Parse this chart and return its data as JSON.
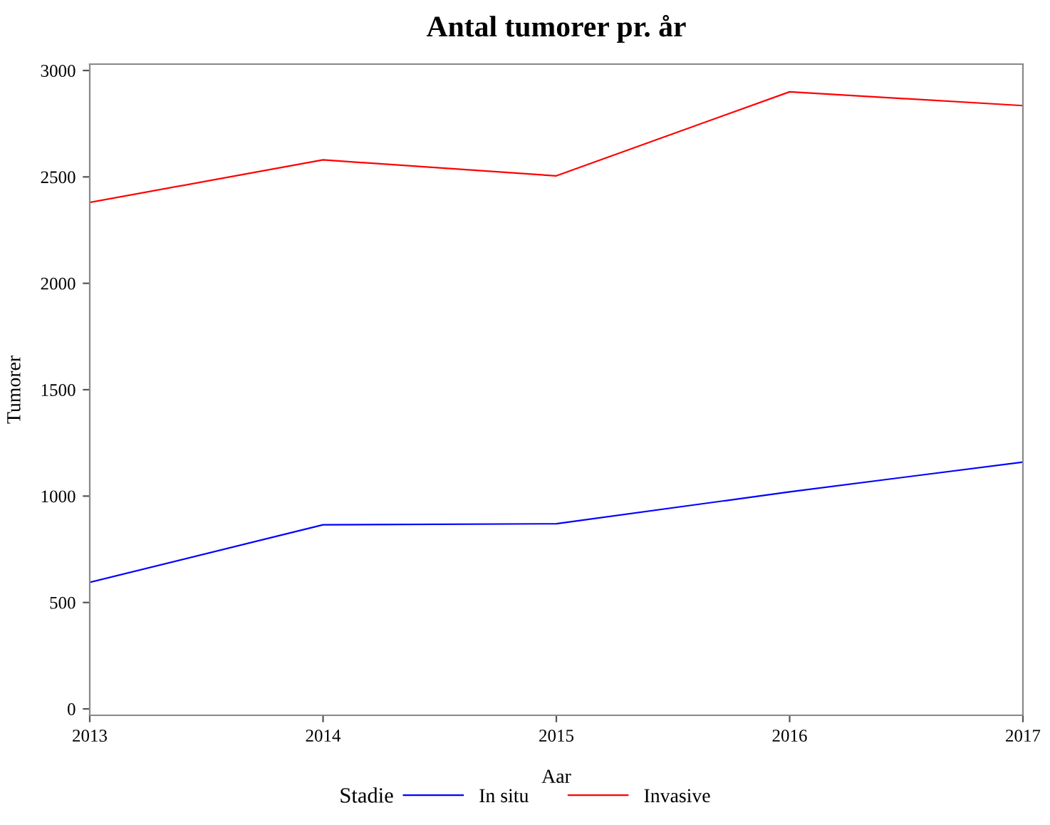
{
  "chart_data": {
    "type": "line",
    "title": "Antal tumorer pr. år",
    "xlabel": "Aar",
    "ylabel": "Tumorer",
    "legend_title": "Stadie",
    "legend": "bottom",
    "grid": false,
    "marker": "none",
    "line_style": "solid",
    "x": [
      2013,
      2014,
      2015,
      2016,
      2017
    ],
    "xlim": [
      2013,
      2017
    ],
    "xticks": [
      2013,
      2014,
      2015,
      2016,
      2017
    ],
    "ylim": [
      -30,
      3030
    ],
    "yticks": [
      0,
      500,
      1000,
      1500,
      2000,
      2500,
      3000
    ],
    "series": [
      {
        "name": "In situ",
        "color": "#0000ff",
        "values": [
          595,
          865,
          870,
          1020,
          1160
        ]
      },
      {
        "name": "Invasive",
        "color": "#ff0000",
        "values": [
          2380,
          2580,
          2505,
          2900,
          2835
        ]
      }
    ]
  }
}
